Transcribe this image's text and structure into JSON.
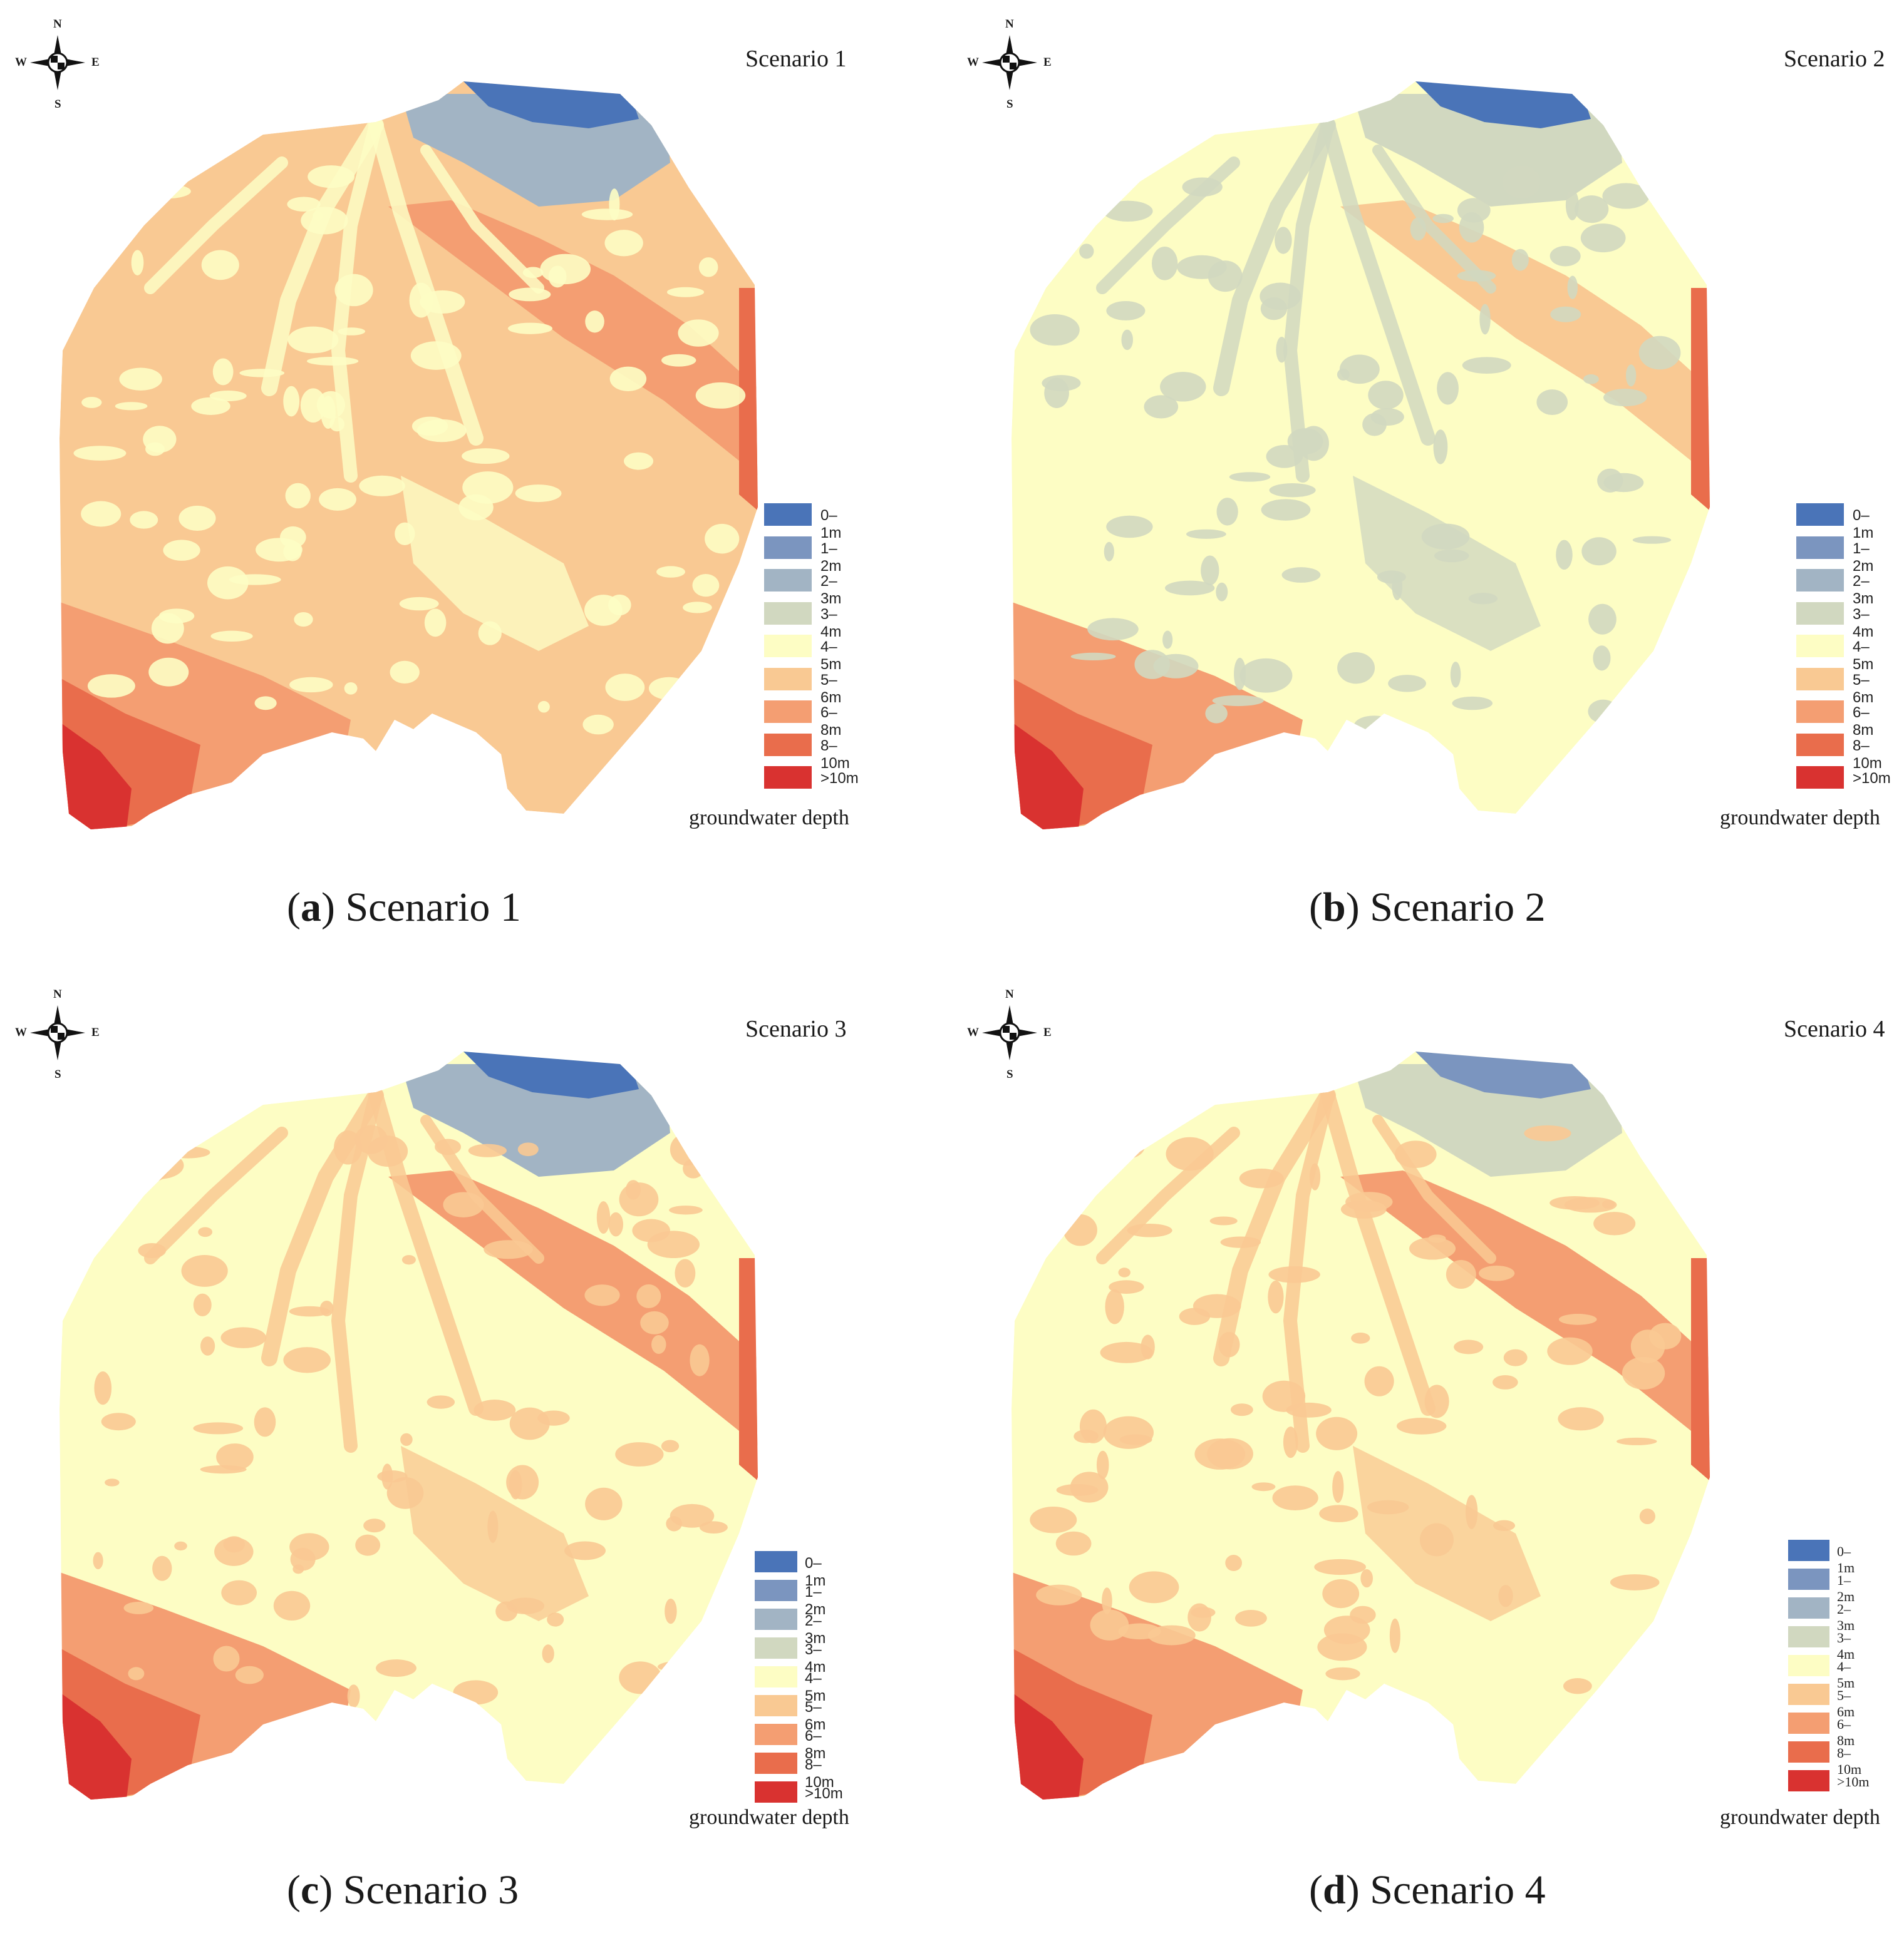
{
  "compass": {
    "n": "N",
    "s": "S",
    "w": "W",
    "e": "E"
  },
  "legend": {
    "title": "groundwater depth",
    "classes": [
      {
        "label": "0–1m",
        "color": "#4a74b8"
      },
      {
        "label": "1–2m",
        "color": "#7b95bf"
      },
      {
        "label": "2–3m",
        "color": "#a2b4c4"
      },
      {
        "label": "3–4m",
        "color": "#d1d8c0"
      },
      {
        "label": "4–5m",
        "color": "#fdfdc4"
      },
      {
        "label": "5–6m",
        "color": "#f9c993"
      },
      {
        "label": "6–8m",
        "color": "#f49e72"
      },
      {
        "label": "8–10m",
        "color": "#e96d4c"
      },
      {
        "label": ">10m",
        "color": "#d93230"
      }
    ]
  },
  "panels": [
    {
      "title": "Scenario 1",
      "caption_letter": "a",
      "caption_text": "Scenario 1",
      "zones": {
        "base": "5–6m",
        "north": "0–1m",
        "north2": "2–3m",
        "belt": "6–8m",
        "southwest": ">10m",
        "patches": "4–5m"
      }
    },
    {
      "title": "Scenario 2",
      "caption_letter": "b",
      "caption_text": "Scenario 2",
      "zones": {
        "base": "4–5m",
        "north": "0–1m",
        "north2": "3–4m",
        "belt": "5–6m",
        "southwest": ">10m",
        "patches": "3–4m"
      }
    },
    {
      "title": "Scenario 3",
      "caption_letter": "c",
      "caption_text": "Scenario 3",
      "zones": {
        "base": "4–5m",
        "north": "0–1m",
        "north2": "2–3m",
        "belt": "6–8m",
        "southwest": ">10m",
        "patches": "5–6m"
      }
    },
    {
      "title": "Scenario 4",
      "caption_letter": "d",
      "caption_text": "Scenario 4",
      "zones": {
        "base": "4–5m",
        "north": "1–2m",
        "north2": "3–4m",
        "belt": "6–8m",
        "southwest": ">10m",
        "patches": "5–6m"
      }
    }
  ]
}
